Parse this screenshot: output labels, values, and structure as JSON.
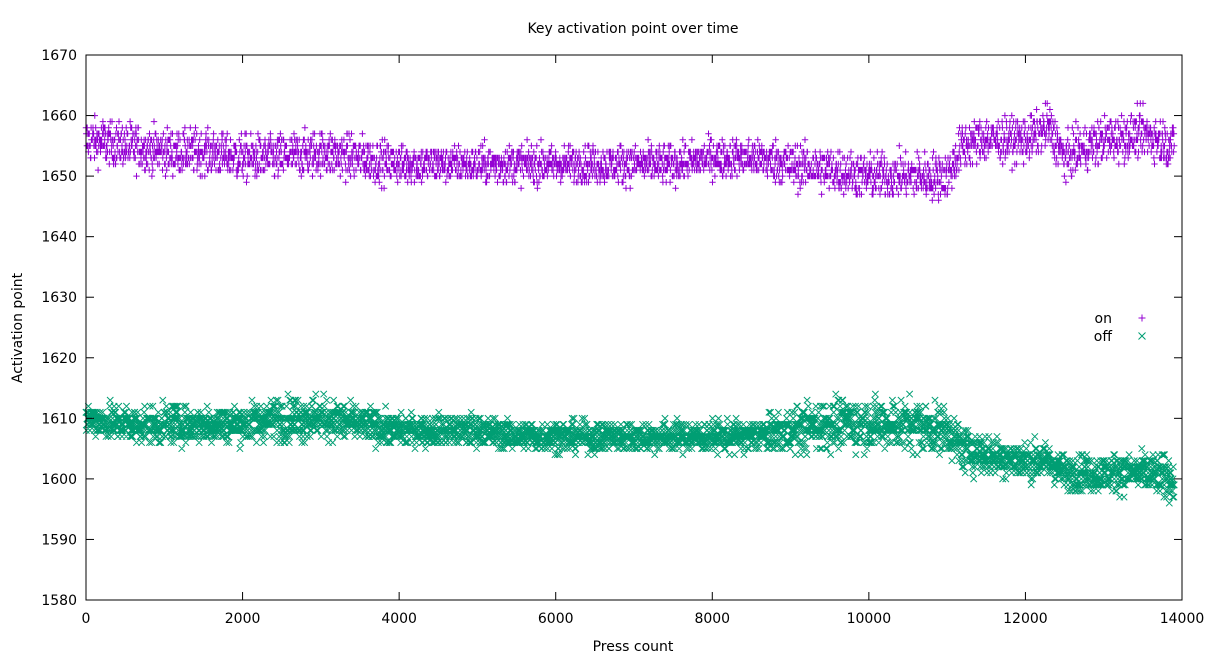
{
  "chart_data": {
    "type": "scatter",
    "title": "Key activation point over time",
    "xlabel": "Press count",
    "ylabel": "Activation point",
    "xlim": [
      0,
      14000
    ],
    "ylim": [
      1580,
      1670
    ],
    "xticks": [
      "0",
      "2000",
      "4000",
      "6000",
      "8000",
      "10000",
      "12000",
      "14000"
    ],
    "yticks": [
      "1580",
      "1590",
      "1600",
      "1610",
      "1620",
      "1630",
      "1640",
      "1650",
      "1660",
      "1670"
    ],
    "grid": false,
    "legend": "right",
    "series": [
      {
        "name": "on",
        "marker": "plus",
        "color": "#9400d3",
        "x": [
          0,
          500,
          1000,
          1500,
          2000,
          2500,
          3000,
          3500,
          4000,
          4500,
          5000,
          5500,
          6000,
          6500,
          7000,
          7500,
          8000,
          8500,
          9000,
          9500,
          10000,
          10500,
          11000,
          11200,
          11500,
          12000,
          12300,
          12500,
          13000,
          13500,
          13900
        ],
        "y": [
          1656,
          1655,
          1654,
          1654,
          1653,
          1653,
          1654,
          1653,
          1652,
          1652,
          1652,
          1652,
          1652,
          1652,
          1652,
          1652,
          1653,
          1653,
          1652,
          1651,
          1650,
          1650,
          1650,
          1655,
          1656,
          1656,
          1658,
          1653,
          1656,
          1657,
          1655
        ],
        "spread": [
          3,
          3,
          3,
          3,
          3,
          3,
          3,
          3,
          2.5,
          2.5,
          2.5,
          2.5,
          2.5,
          2.5,
          2.5,
          2.5,
          2.5,
          2.5,
          3,
          3,
          3,
          3,
          3,
          3,
          3,
          3,
          3,
          3,
          3,
          3,
          3
        ]
      },
      {
        "name": "off",
        "marker": "cross",
        "color": "#009e73",
        "x": [
          0,
          500,
          1000,
          1500,
          2000,
          2500,
          3000,
          3500,
          4000,
          4500,
          5000,
          5500,
          6000,
          6500,
          7000,
          7500,
          8000,
          8500,
          9000,
          9500,
          10000,
          10500,
          11000,
          11200,
          11500,
          12000,
          12300,
          12500,
          13000,
          13500,
          13900
        ],
        "y": [
          1610,
          1609,
          1609,
          1609,
          1609,
          1610,
          1610,
          1609,
          1608,
          1608,
          1608,
          1607,
          1607,
          1607,
          1607,
          1607,
          1607,
          1607,
          1608,
          1609,
          1609,
          1609,
          1608,
          1605,
          1604,
          1603,
          1603,
          1601,
          1601,
          1601,
          1600
        ],
        "spread": [
          2,
          2.5,
          2.5,
          2.5,
          2.5,
          3,
          3,
          2.5,
          2,
          2,
          2,
          2,
          2,
          2,
          2,
          2,
          2,
          2,
          3,
          3.5,
          3.5,
          3.5,
          3,
          3,
          3,
          2.5,
          2.5,
          2.5,
          2.5,
          2.5,
          3
        ]
      }
    ]
  }
}
